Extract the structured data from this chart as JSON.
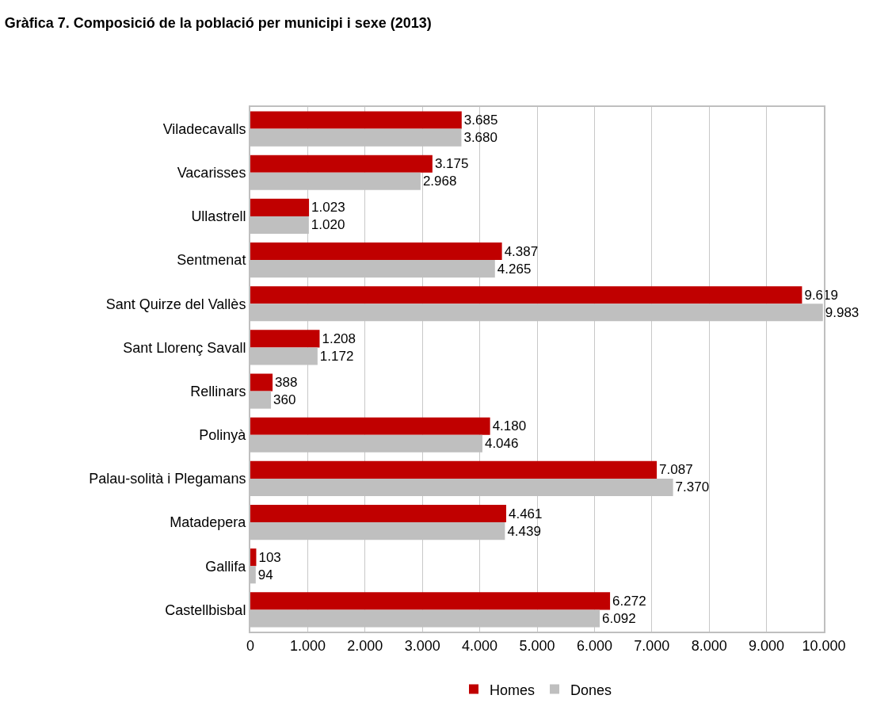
{
  "chart_data": {
    "type": "bar",
    "orientation": "horizontal",
    "title": "Gràfica 7. Composició de la població per municipi i sexe (2013)",
    "categories": [
      "Viladecavalls",
      "Vacarisses",
      "Ullastrell",
      "Sentmenat",
      "Sant Quirze del Vallès",
      "Sant Llorenç Savall",
      "Rellinars",
      "Polinyà",
      "Palau-solità i Plegamans",
      "Matadepera",
      "Gallifa",
      "Castellbisbal"
    ],
    "series": [
      {
        "name": "Homes",
        "color": "#c00000",
        "values": [
          3685,
          3175,
          1023,
          4387,
          9619,
          1208,
          388,
          4180,
          7087,
          4461,
          103,
          6272
        ],
        "value_labels": [
          "3.685",
          "3.175",
          "1.023",
          "4.387",
          "9.619",
          "1.208",
          "388",
          "4.180",
          "7.087",
          "4.461",
          "103",
          "6.272"
        ]
      },
      {
        "name": "Dones",
        "color": "#bfbfbf",
        "values": [
          3680,
          2968,
          1020,
          4265,
          9983,
          1172,
          360,
          4046,
          7370,
          4439,
          94,
          6092
        ],
        "value_labels": [
          "3.680",
          "2.968",
          "1.020",
          "4.265",
          "9.983",
          "1.172",
          "360",
          "4.046",
          "7.370",
          "4.439",
          "94",
          "6.092"
        ]
      }
    ],
    "xlim": [
      0,
      10000
    ],
    "xticks": [
      0,
      {
        "value": 1000,
        "label": "1.000"
      },
      {
        "value": 2000,
        "label": "2.000"
      },
      {
        "value": 3000,
        "label": "3.000"
      },
      {
        "value": 4000,
        "label": "4.000"
      },
      {
        "value": 5000,
        "label": "5.000"
      },
      {
        "value": 6000,
        "label": "6.000"
      },
      {
        "value": 7000,
        "label": "7.000"
      },
      {
        "value": 8000,
        "label": "8.000"
      },
      {
        "value": 9000,
        "label": "9.000"
      },
      {
        "value": 10000,
        "label": "10.000"
      }
    ],
    "grid": "x",
    "legend": "bottom"
  }
}
